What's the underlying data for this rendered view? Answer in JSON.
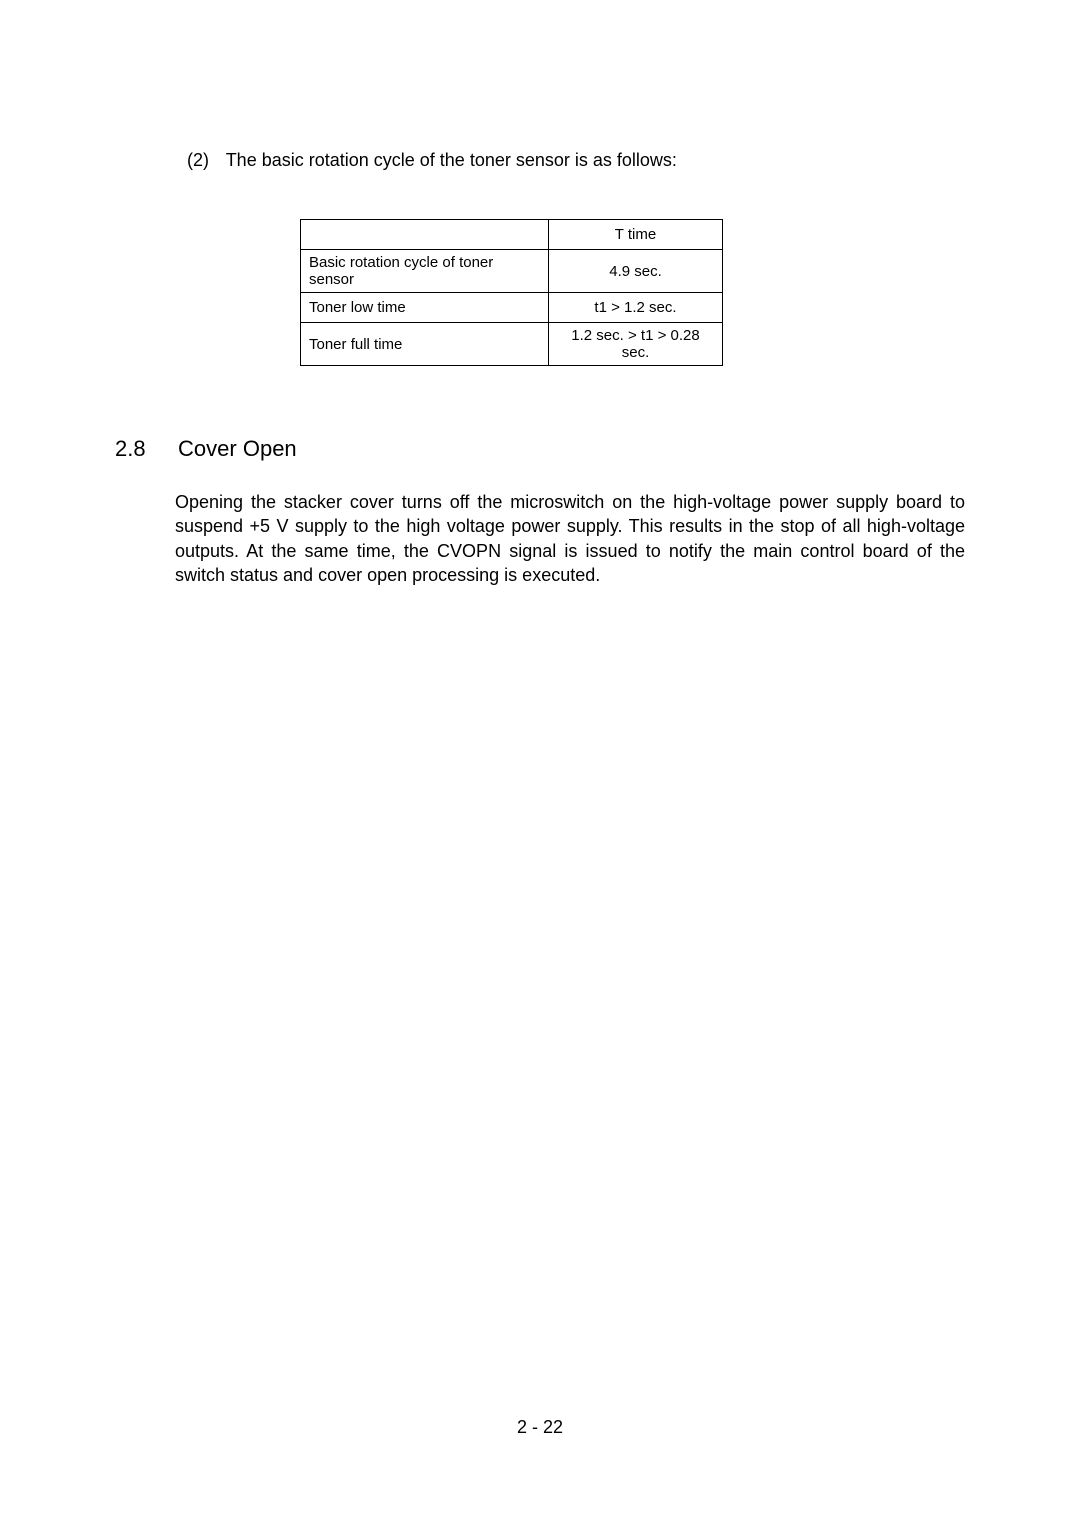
{
  "item": {
    "number": "(2)",
    "text": "The basic rotation cycle of the toner sensor is as follows:"
  },
  "table": {
    "header_left": "",
    "header_right": "T time",
    "rows": [
      {
        "label": "Basic rotation cycle of toner sensor",
        "value": "4.9 sec."
      },
      {
        "label": "Toner low time",
        "value": "t1 > 1.2 sec."
      },
      {
        "label": "Toner full time",
        "value": "1.2 sec. > t1 > 0.28 sec."
      }
    ]
  },
  "section": {
    "number": "2.8",
    "title": "Cover Open",
    "body": "Opening the stacker cover turns off the microswitch on the high-voltage power supply board to suspend +5 V supply to the high voltage power supply.  This results in the stop of all high-voltage outputs.  At the same time, the CVOPN signal is issued to notify the main control board of the switch status and cover open processing is executed."
  },
  "page_number": "2 - 22"
}
